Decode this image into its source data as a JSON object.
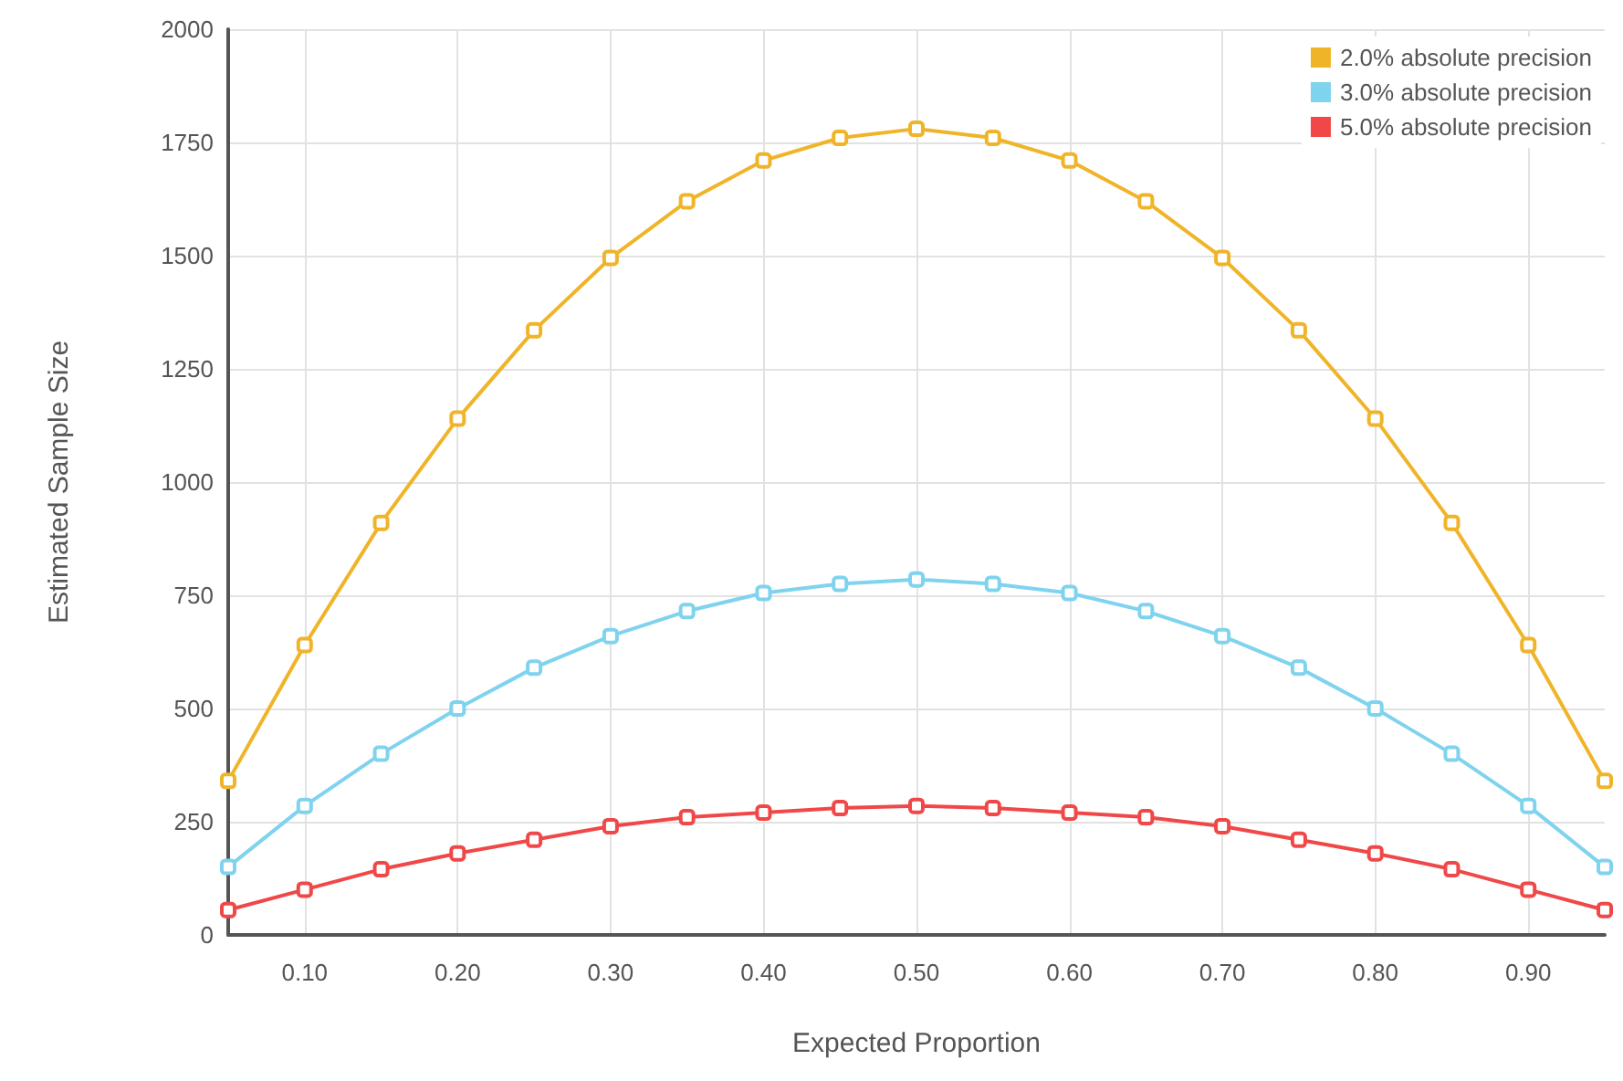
{
  "chart_data": {
    "type": "line",
    "xlabel": "Expected Proportion",
    "ylabel": "Estimated Sample Size",
    "x": [
      0.05,
      0.1,
      0.15,
      0.2,
      0.25,
      0.3,
      0.35,
      0.4,
      0.45,
      0.5,
      0.55,
      0.6,
      0.65,
      0.7,
      0.75,
      0.8,
      0.85,
      0.9,
      0.95
    ],
    "series": [
      {
        "name": "2.0% absolute precision",
        "color": "#f0b429",
        "values": [
          340,
          640,
          910,
          1140,
          1335,
          1495,
          1620,
          1710,
          1760,
          1780,
          1760,
          1710,
          1620,
          1495,
          1335,
          1140,
          910,
          640,
          340
        ]
      },
      {
        "name": "3.0% absolute precision",
        "color": "#7fd3ee",
        "values": [
          150,
          285,
          400,
          500,
          590,
          660,
          715,
          755,
          775,
          785,
          775,
          755,
          715,
          660,
          590,
          500,
          400,
          285,
          150
        ]
      },
      {
        "name": "5.0% absolute precision",
        "color": "#f04848",
        "values": [
          55,
          100,
          145,
          180,
          210,
          240,
          260,
          270,
          280,
          285,
          280,
          270,
          260,
          240,
          210,
          180,
          145,
          100,
          55
        ]
      }
    ],
    "xlim": [
      0.05,
      0.95
    ],
    "xticks": [
      {
        "value": 0.1,
        "label": "0.10"
      },
      {
        "value": 0.2,
        "label": "0.20"
      },
      {
        "value": 0.3,
        "label": "0.30"
      },
      {
        "value": 0.4,
        "label": "0.40"
      },
      {
        "value": 0.5,
        "label": "0.50"
      },
      {
        "value": 0.6,
        "label": "0.60"
      },
      {
        "value": 0.7,
        "label": "0.70"
      },
      {
        "value": 0.8,
        "label": "0.80"
      },
      {
        "value": 0.9,
        "label": "0.90"
      }
    ],
    "ylim": [
      0,
      2000
    ],
    "yticks": [
      0,
      250,
      500,
      750,
      1000,
      1250,
      1500,
      1750,
      2000
    ],
    "grid": true,
    "legend": "top right",
    "marker": "square",
    "line_style": "solid"
  }
}
